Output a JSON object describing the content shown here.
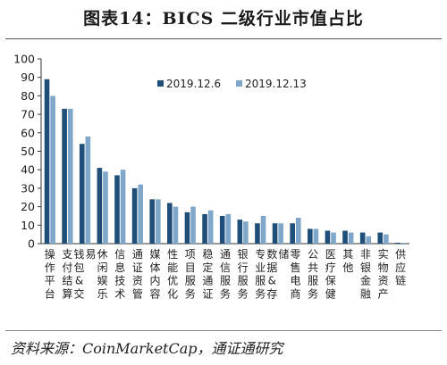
{
  "title": "图表14：BICS 二级行业市值占比",
  "source": "资料来源：CoinMarketCap，通证通研究",
  "chart_data": {
    "type": "bar",
    "title": "图表14：BICS 二级行业市值占比",
    "xlabel": "",
    "ylabel": "",
    "ylim": [
      0,
      100
    ],
    "yticks": [
      0,
      10,
      20,
      30,
      40,
      50,
      60,
      70,
      80,
      90,
      100
    ],
    "grid": false,
    "legend_position": "top-right",
    "categories": [
      "操作平台",
      "支付结算",
      "钱包&交易",
      "休闲娱乐",
      "信息技术",
      "通证资管",
      "媒体内容",
      "性能优化",
      "项目服务",
      "稳定通证",
      "通信服务",
      "银行服务",
      "专业服务",
      "数据&存储",
      "零售电商",
      "公共服务",
      "医疗保健",
      "其他",
      "非银金融",
      "实物资产",
      "供应链"
    ],
    "series": [
      {
        "name": "2019.12.6",
        "color": "#1f4e79",
        "values": [
          89,
          73,
          54,
          41,
          37,
          30,
          24,
          22,
          17,
          16,
          15,
          13,
          11,
          11,
          11,
          8,
          7,
          7,
          6,
          6,
          0.5
        ]
      },
      {
        "name": "2019.12.13",
        "color": "#7fa7c9",
        "values": [
          80,
          73,
          58,
          39,
          40,
          32,
          24,
          20,
          20,
          18,
          16,
          12,
          15,
          11,
          14,
          8,
          6,
          6,
          4,
          5,
          0.5
        ]
      }
    ]
  }
}
